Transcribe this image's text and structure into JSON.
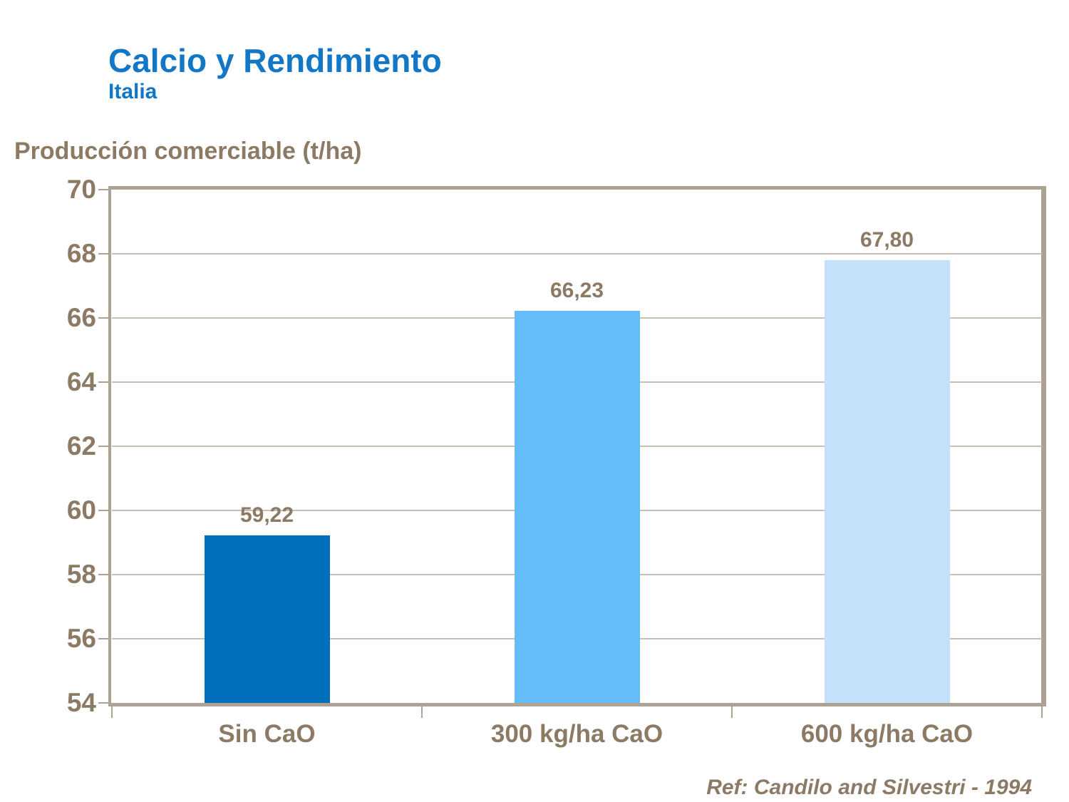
{
  "header": {
    "title": "Calcio y Rendimiento",
    "subtitle": "Italia",
    "title_color": "#1377C8"
  },
  "axis_title": "Producción comerciable (t/ha)",
  "footer": {
    "reference": "Ref: Candilo and Silvestri - 1994"
  },
  "colors": {
    "title_blue": "#1377C8",
    "label_brown": "#8C7A64",
    "frame_tan": "#AEA294",
    "gridline_tan": "#C9BFB2",
    "background": "#FFFFFF"
  },
  "chart_data": {
    "type": "bar",
    "title": "Calcio y Rendimiento",
    "subtitle": "Italia",
    "ylabel": "Producción comerciable (t/ha)",
    "xlabel": "",
    "categories": [
      "Sin CaO",
      "300 kg/ha CaO",
      "600 kg/ha CaO"
    ],
    "values": [
      59.22,
      66.23,
      67.8
    ],
    "value_labels": [
      "59,22",
      "66,23",
      "67,80"
    ],
    "bar_colors": [
      "#0070BC",
      "#64BCF8",
      "#C3E1FB"
    ],
    "ylim": [
      54,
      70
    ],
    "yticks": [
      54,
      56,
      58,
      60,
      62,
      64,
      66,
      68,
      70
    ],
    "grid": true,
    "legend_position": "none",
    "reference": "Ref: Candilo and Silvestri - 1994"
  }
}
